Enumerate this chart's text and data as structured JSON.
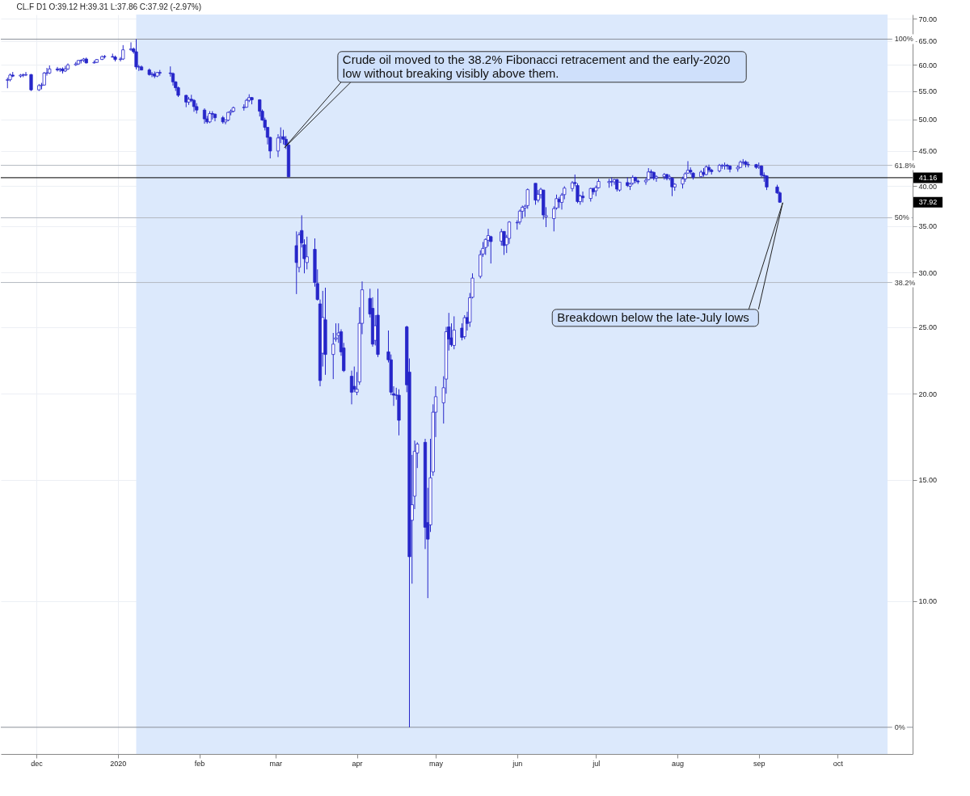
{
  "chart_data": {
    "type": "candlestick",
    "title": "CL.F  D1  O:39.12  H:39.31  L:37.86  C:37.92  (-2.97%)",
    "color": "#2626c9",
    "x": [
      "2019-11-20",
      "2019-11-21",
      "2019-11-22",
      "2019-11-25",
      "2019-11-26",
      "2019-11-27",
      "2019-11-29",
      "2019-12-02",
      "2019-12-03",
      "2019-12-04",
      "2019-12-05",
      "2019-12-06",
      "2019-12-09",
      "2019-12-10",
      "2019-12-11",
      "2019-12-12",
      "2019-12-13",
      "2019-12-16",
      "2019-12-17",
      "2019-12-18",
      "2019-12-19",
      "2019-12-20",
      "2019-12-23",
      "2019-12-24",
      "2019-12-26",
      "2019-12-27",
      "2019-12-30",
      "2019-12-31",
      "2020-01-02",
      "2020-01-03",
      "2020-01-06",
      "2020-01-07",
      "2020-01-08",
      "2020-01-09",
      "2020-01-10",
      "2020-01-13",
      "2020-01-14",
      "2020-01-15",
      "2020-01-16",
      "2020-01-17",
      "2020-01-21",
      "2020-01-22",
      "2020-01-23",
      "2020-01-24",
      "2020-01-27",
      "2020-01-28",
      "2020-01-29",
      "2020-01-30",
      "2020-01-31",
      "2020-02-03",
      "2020-02-04",
      "2020-02-05",
      "2020-02-06",
      "2020-02-07",
      "2020-02-10",
      "2020-02-11",
      "2020-02-12",
      "2020-02-13",
      "2020-02-14",
      "2020-02-18",
      "2020-02-19",
      "2020-02-20",
      "2020-02-21",
      "2020-02-24",
      "2020-02-25",
      "2020-02-26",
      "2020-02-27",
      "2020-02-28",
      "2020-03-02",
      "2020-03-03",
      "2020-03-04",
      "2020-03-05",
      "2020-03-06",
      "2020-03-09",
      "2020-03-10",
      "2020-03-11",
      "2020-03-12",
      "2020-03-13",
      "2020-03-16",
      "2020-03-17",
      "2020-03-18",
      "2020-03-19",
      "2020-03-20",
      "2020-03-23",
      "2020-03-24",
      "2020-03-25",
      "2020-03-26",
      "2020-03-27",
      "2020-03-30",
      "2020-03-31",
      "2020-04-01",
      "2020-04-02",
      "2020-04-03",
      "2020-04-06",
      "2020-04-07",
      "2020-04-08",
      "2020-04-09",
      "2020-04-13",
      "2020-04-14",
      "2020-04-15",
      "2020-04-16",
      "2020-04-17",
      "2020-04-20",
      "2020-04-21",
      "2020-04-22",
      "2020-04-23",
      "2020-04-24",
      "2020-04-27",
      "2020-04-28",
      "2020-04-29",
      "2020-04-30",
      "2020-05-01",
      "2020-05-04",
      "2020-05-05",
      "2020-05-06",
      "2020-05-07",
      "2020-05-08",
      "2020-05-11",
      "2020-05-12",
      "2020-05-13",
      "2020-05-14",
      "2020-05-15",
      "2020-05-18",
      "2020-05-19",
      "2020-05-20",
      "2020-05-21",
      "2020-05-22",
      "2020-05-26",
      "2020-05-27",
      "2020-05-28",
      "2020-05-29",
      "2020-06-01",
      "2020-06-02",
      "2020-06-03",
      "2020-06-04",
      "2020-06-05",
      "2020-06-08",
      "2020-06-09",
      "2020-06-10",
      "2020-06-11",
      "2020-06-12",
      "2020-06-15",
      "2020-06-16",
      "2020-06-17",
      "2020-06-18",
      "2020-06-19",
      "2020-06-22",
      "2020-06-23",
      "2020-06-24",
      "2020-06-25",
      "2020-06-26",
      "2020-06-29",
      "2020-06-30",
      "2020-07-01",
      "2020-07-02",
      "2020-07-06",
      "2020-07-07",
      "2020-07-08",
      "2020-07-09",
      "2020-07-10",
      "2020-07-13",
      "2020-07-14",
      "2020-07-15",
      "2020-07-16",
      "2020-07-17",
      "2020-07-20",
      "2020-07-21",
      "2020-07-22",
      "2020-07-23",
      "2020-07-24",
      "2020-07-27",
      "2020-07-28",
      "2020-07-29",
      "2020-07-30",
      "2020-07-31",
      "2020-08-03",
      "2020-08-04",
      "2020-08-05",
      "2020-08-06",
      "2020-08-07",
      "2020-08-10",
      "2020-08-11",
      "2020-08-12",
      "2020-08-13",
      "2020-08-14",
      "2020-08-17",
      "2020-08-18",
      "2020-08-19",
      "2020-08-20",
      "2020-08-21",
      "2020-08-24",
      "2020-08-25",
      "2020-08-26",
      "2020-08-27",
      "2020-08-28",
      "2020-08-31",
      "2020-09-01",
      "2020-09-02",
      "2020-09-03",
      "2020-09-04",
      "2020-09-08",
      "2020-09-09"
    ],
    "ohlc": [
      [
        57.0,
        57.5,
        55.5,
        57.1
      ],
      [
        57.1,
        58.3,
        56.8,
        58.0
      ],
      [
        58.0,
        58.6,
        57.6,
        57.8
      ],
      [
        57.8,
        58.2,
        57.5,
        58.0
      ],
      [
        58.0,
        58.3,
        57.6,
        58.0
      ],
      [
        58.0,
        58.6,
        57.8,
        58.1
      ],
      [
        58.1,
        58.2,
        55.0,
        55.2
      ],
      [
        55.2,
        56.3,
        55.0,
        56.0
      ],
      [
        56.0,
        56.5,
        55.3,
        56.1
      ],
      [
        56.1,
        58.6,
        56.0,
        58.4
      ],
      [
        58.4,
        59.4,
        57.9,
        58.4
      ],
      [
        58.4,
        59.9,
        58.2,
        59.2
      ],
      [
        59.2,
        59.6,
        58.7,
        59.0
      ],
      [
        59.0,
        59.4,
        58.6,
        59.2
      ],
      [
        59.2,
        59.5,
        58.3,
        58.8
      ],
      [
        58.8,
        59.8,
        58.6,
        59.2
      ],
      [
        59.2,
        60.3,
        59.0,
        60.0
      ],
      [
        60.0,
        60.6,
        59.8,
        60.2
      ],
      [
        60.2,
        61.0,
        60.0,
        60.9
      ],
      [
        60.9,
        61.1,
        60.3,
        60.9
      ],
      [
        60.9,
        61.4,
        60.6,
        61.2
      ],
      [
        61.2,
        61.5,
        60.3,
        60.4
      ],
      [
        60.4,
        60.9,
        60.3,
        60.5
      ],
      [
        60.5,
        61.2,
        60.4,
        61.1
      ],
      [
        61.1,
        61.9,
        61.0,
        61.7
      ],
      [
        61.7,
        62.0,
        61.3,
        61.7
      ],
      [
        61.7,
        62.3,
        61.5,
        61.6
      ],
      [
        61.6,
        61.9,
        60.7,
        61.1
      ],
      [
        61.1,
        61.6,
        60.7,
        61.2
      ],
      [
        61.2,
        64.1,
        61.0,
        63.1
      ],
      [
        63.1,
        64.7,
        62.9,
        63.3
      ],
      [
        63.3,
        63.6,
        62.3,
        62.7
      ],
      [
        62.7,
        65.4,
        59.1,
        59.6
      ],
      [
        59.6,
        60.0,
        58.8,
        59.6
      ],
      [
        59.6,
        59.9,
        58.9,
        59.0
      ],
      [
        59.0,
        59.3,
        57.9,
        58.1
      ],
      [
        58.1,
        58.6,
        57.6,
        58.2
      ],
      [
        58.2,
        58.7,
        57.4,
        57.8
      ],
      [
        57.8,
        58.6,
        57.6,
        58.5
      ],
      [
        58.5,
        59.0,
        57.9,
        58.4
      ],
      [
        58.4,
        59.7,
        57.7,
        58.3
      ],
      [
        58.3,
        58.5,
        56.0,
        56.7
      ],
      [
        56.7,
        56.8,
        55.0,
        55.6
      ],
      [
        55.6,
        55.8,
        53.9,
        54.2
      ],
      [
        54.2,
        54.3,
        52.1,
        53.0
      ],
      [
        53.0,
        53.9,
        52.5,
        53.5
      ],
      [
        53.5,
        54.3,
        53.0,
        53.3
      ],
      [
        53.3,
        53.5,
        51.3,
        52.2
      ],
      [
        52.2,
        52.8,
        51.0,
        51.6
      ],
      [
        51.6,
        51.9,
        49.3,
        50.1
      ],
      [
        50.1,
        50.6,
        49.3,
        49.6
      ],
      [
        49.6,
        51.4,
        49.4,
        51.0
      ],
      [
        51.0,
        51.4,
        50.0,
        50.9
      ],
      [
        50.9,
        51.0,
        49.7,
        50.3
      ],
      [
        50.3,
        50.6,
        49.3,
        49.6
      ],
      [
        49.6,
        50.0,
        49.2,
        49.9
      ],
      [
        49.9,
        51.3,
        49.7,
        51.2
      ],
      [
        51.2,
        51.7,
        50.7,
        51.4
      ],
      [
        51.4,
        52.2,
        51.2,
        52.0
      ],
      [
        52.0,
        52.6,
        51.5,
        52.1
      ],
      [
        52.1,
        53.6,
        52.0,
        53.3
      ],
      [
        53.3,
        54.4,
        53.0,
        53.8
      ],
      [
        53.8,
        53.9,
        52.6,
        53.4
      ],
      [
        53.4,
        53.5,
        50.5,
        51.4
      ],
      [
        51.4,
        51.7,
        49.8,
        49.9
      ],
      [
        49.9,
        50.3,
        48.2,
        48.7
      ],
      [
        48.7,
        48.7,
        46.0,
        47.1
      ],
      [
        47.1,
        47.2,
        43.9,
        45.0
      ],
      [
        45.0,
        47.6,
        44.1,
        47.0
      ],
      [
        47.0,
        48.7,
        46.2,
        47.2
      ],
      [
        47.2,
        48.3,
        46.0,
        46.8
      ],
      [
        46.8,
        47.3,
        45.3,
        45.9
      ],
      [
        45.9,
        46.4,
        41.2,
        41.3
      ],
      [
        32.8,
        34.4,
        27.9,
        31.0
      ],
      [
        30.5,
        34.3,
        30.0,
        34.0
      ],
      [
        34.5,
        36.3,
        32.6,
        33.1
      ],
      [
        32.9,
        33.5,
        29.9,
        31.4
      ],
      [
        31.0,
        33.8,
        30.3,
        31.6
      ],
      [
        32.4,
        33.6,
        28.6,
        29.0
      ],
      [
        28.9,
        30.3,
        27.3,
        27.4
      ],
      [
        27.0,
        27.4,
        20.5,
        20.9
      ],
      [
        22.9,
        28.2,
        21.9,
        25.8
      ],
      [
        25.6,
        28.5,
        21.3,
        22.8
      ],
      [
        22.8,
        24.5,
        21.0,
        23.6
      ],
      [
        24.0,
        25.3,
        23.8,
        24.1
      ],
      [
        24.3,
        25.3,
        23.7,
        24.5
      ],
      [
        24.6,
        24.8,
        22.7,
        23.0
      ],
      [
        23.3,
        23.7,
        21.5,
        21.6
      ],
      [
        21.2,
        21.6,
        19.3,
        20.1
      ],
      [
        20.5,
        21.9,
        20.1,
        20.3
      ],
      [
        20.1,
        21.5,
        19.9,
        20.3
      ],
      [
        20.8,
        26.7,
        20.6,
        25.3
      ],
      [
        25.3,
        29.1,
        24.4,
        28.3
      ],
      [
        27.5,
        28.4,
        25.8,
        26.1
      ],
      [
        26.6,
        27.6,
        23.4,
        23.6
      ],
      [
        23.9,
        26.0,
        23.5,
        25.1
      ],
      [
        26.0,
        28.4,
        22.6,
        22.8
      ],
      [
        23.0,
        24.7,
        22.2,
        22.4
      ],
      [
        22.4,
        22.8,
        19.9,
        20.1
      ],
      [
        20.0,
        20.5,
        19.2,
        19.9
      ],
      [
        19.9,
        20.4,
        19.6,
        19.9
      ],
      [
        19.9,
        20.3,
        17.4,
        18.3
      ],
      [
        25.0,
        25.1,
        20.1,
        20.6
      ],
      [
        21.5,
        22.5,
        6.56,
        11.6
      ],
      [
        13.1,
        16.3,
        10.6,
        13.8
      ],
      [
        14.2,
        17.1,
        13.6,
        16.5
      ],
      [
        16.4,
        17.0,
        15.6,
        16.9
      ],
      [
        17.0,
        17.2,
        11.9,
        12.8
      ],
      [
        13.0,
        14.6,
        10.1,
        12.3
      ],
      [
        12.9,
        17.2,
        12.6,
        15.1
      ],
      [
        15.4,
        19.3,
        15.2,
        18.8
      ],
      [
        18.8,
        20.5,
        17.3,
        19.8
      ],
      [
        19.4,
        21.2,
        18.1,
        20.4
      ],
      [
        21.0,
        25.0,
        20.0,
        24.6
      ],
      [
        25.0,
        26.2,
        23.1,
        24.0
      ],
      [
        24.1,
        25.3,
        23.4,
        23.55
      ],
      [
        23.5,
        25.9,
        23.2,
        24.74
      ],
      [
        24.9,
        25.3,
        23.9,
        24.14
      ],
      [
        24.2,
        26.0,
        24.0,
        25.78
      ],
      [
        25.8,
        26.3,
        24.7,
        25.29
      ],
      [
        25.4,
        28.0,
        25.0,
        27.56
      ],
      [
        27.6,
        29.9,
        27.5,
        29.43
      ],
      [
        29.6,
        32.3,
        29.4,
        31.82
      ],
      [
        31.9,
        33.2,
        31.6,
        32.5
      ],
      [
        32.6,
        33.6,
        31.8,
        33.49
      ],
      [
        33.4,
        34.7,
        32.7,
        33.92
      ],
      [
        33.8,
        33.9,
        30.9,
        33.25
      ],
      [
        33.3,
        34.7,
        32.8,
        34.35
      ],
      [
        34.4,
        34.4,
        31.8,
        32.81
      ],
      [
        32.9,
        34.0,
        32.0,
        33.71
      ],
      [
        33.6,
        35.6,
        33.0,
        35.49
      ],
      [
        35.4,
        35.7,
        34.6,
        35.44
      ],
      [
        35.5,
        37.0,
        35.2,
        36.81
      ],
      [
        36.8,
        37.5,
        35.9,
        37.29
      ],
      [
        37.2,
        37.6,
        36.1,
        37.41
      ],
      [
        37.5,
        39.7,
        37.1,
        39.55
      ],
      [
        40.4,
        40.4,
        37.6,
        38.19
      ],
      [
        38.2,
        39.5,
        37.9,
        38.94
      ],
      [
        38.9,
        39.8,
        38.4,
        39.6
      ],
      [
        39.5,
        39.5,
        35.8,
        36.34
      ],
      [
        36.1,
        37.3,
        34.9,
        36.26
      ],
      [
        35.9,
        37.4,
        34.4,
        37.12
      ],
      [
        37.2,
        38.9,
        37.0,
        38.38
      ],
      [
        38.3,
        38.6,
        37.2,
        37.96
      ],
      [
        37.9,
        39.1,
        37.0,
        38.84
      ],
      [
        38.9,
        40.0,
        38.3,
        39.75
      ],
      [
        39.7,
        40.7,
        39.3,
        40.46
      ],
      [
        40.5,
        41.6,
        40.0,
        40.37
      ],
      [
        40.1,
        40.4,
        37.8,
        38.01
      ],
      [
        38.0,
        38.9,
        37.6,
        38.72
      ],
      [
        38.7,
        39.3,
        37.9,
        38.49
      ],
      [
        38.4,
        39.8,
        38.0,
        39.7
      ],
      [
        39.7,
        39.8,
        38.9,
        39.27
      ],
      [
        39.4,
        40.1,
        38.7,
        39.82
      ],
      [
        39.8,
        41.0,
        39.7,
        40.65
      ],
      [
        40.5,
        41.0,
        39.8,
        40.63
      ],
      [
        40.6,
        41.2,
        40.0,
        40.62
      ],
      [
        40.6,
        41.0,
        40.2,
        40.9
      ],
      [
        40.9,
        41.0,
        39.3,
        39.62
      ],
      [
        39.5,
        40.6,
        39.3,
        40.55
      ],
      [
        40.5,
        41.2,
        39.9,
        40.1
      ],
      [
        40.0,
        40.5,
        39.5,
        40.29
      ],
      [
        40.4,
        41.5,
        40.2,
        41.2
      ],
      [
        41.2,
        41.3,
        40.4,
        40.75
      ],
      [
        40.7,
        40.9,
        40.3,
        40.59
      ],
      [
        40.6,
        41.1,
        40.2,
        40.81
      ],
      [
        40.9,
        42.5,
        40.8,
        41.96
      ],
      [
        42.0,
        42.3,
        41.0,
        41.9
      ],
      [
        41.9,
        42.0,
        40.8,
        41.07
      ],
      [
        41.1,
        41.5,
        40.6,
        41.29
      ],
      [
        41.3,
        41.8,
        40.9,
        41.6
      ],
      [
        41.6,
        41.7,
        40.8,
        41.04
      ],
      [
        41.1,
        41.6,
        40.8,
        41.27
      ],
      [
        41.1,
        41.2,
        38.7,
        39.92
      ],
      [
        39.9,
        40.4,
        39.4,
        40.27
      ],
      [
        40.3,
        41.3,
        39.7,
        41.01
      ],
      [
        41.0,
        41.9,
        40.6,
        41.7
      ],
      [
        41.8,
        43.5,
        41.7,
        42.19
      ],
      [
        42.2,
        42.6,
        41.6,
        41.95
      ],
      [
        41.8,
        41.9,
        40.9,
        41.22
      ],
      [
        41.3,
        42.2,
        41.2,
        41.94
      ],
      [
        41.9,
        42.5,
        41.3,
        41.61
      ],
      [
        41.6,
        42.9,
        41.5,
        42.67
      ],
      [
        42.6,
        43.0,
        41.9,
        42.24
      ],
      [
        42.2,
        42.4,
        41.6,
        42.01
      ],
      [
        42.1,
        43.1,
        41.9,
        42.89
      ],
      [
        42.8,
        43.1,
        42.4,
        42.89
      ],
      [
        42.8,
        43.3,
        42.3,
        42.93
      ],
      [
        42.9,
        43.1,
        42.3,
        42.82
      ],
      [
        42.8,
        42.9,
        41.9,
        42.34
      ],
      [
        42.4,
        42.9,
        42.0,
        42.62
      ],
      [
        42.6,
        43.6,
        42.5,
        43.35
      ],
      [
        43.3,
        43.8,
        43.0,
        43.39
      ],
      [
        43.4,
        43.6,
        42.6,
        43.04
      ],
      [
        43.0,
        43.4,
        42.6,
        42.97
      ],
      [
        43.0,
        43.1,
        42.4,
        42.61
      ],
      [
        42.6,
        43.3,
        42.4,
        42.76
      ],
      [
        42.8,
        42.9,
        41.2,
        41.51
      ],
      [
        41.5,
        41.9,
        40.6,
        41.37
      ],
      [
        41.4,
        41.5,
        39.5,
        39.9
      ],
      [
        39.9,
        40.2,
        39.0,
        39.12
      ],
      [
        39.12,
        39.31,
        37.86,
        37.92
      ]
    ],
    "log": true,
    "xlim": [
      "2019-11-19",
      "2020-10-28"
    ],
    "ylim": [
      6,
      71
    ],
    "xticks": [
      {
        "value": "2019-12-01",
        "label": "dec"
      },
      {
        "value": "2020-01-01",
        "label": "2020"
      },
      {
        "value": "2020-02-01",
        "label": "feb"
      },
      {
        "value": "2020-03-01",
        "label": "mar"
      },
      {
        "value": "2020-04-01",
        "label": "apr"
      },
      {
        "value": "2020-05-01",
        "label": "may"
      },
      {
        "value": "2020-06-01",
        "label": "jun"
      },
      {
        "value": "2020-07-01",
        "label": "jul"
      },
      {
        "value": "2020-08-01",
        "label": "aug"
      },
      {
        "value": "2020-09-01",
        "label": "sep"
      },
      {
        "value": "2020-10-01",
        "label": "oct"
      }
    ],
    "yticks": [
      {
        "value": 10,
        "label": "10.00"
      },
      {
        "value": 15,
        "label": "15.00"
      },
      {
        "value": 20,
        "label": "20.00"
      },
      {
        "value": 25,
        "label": "25.00"
      },
      {
        "value": 30,
        "label": "30.00"
      },
      {
        "value": 35,
        "label": "35.00"
      },
      {
        "value": 40,
        "label": "40.00"
      },
      {
        "value": 45,
        "label": "45.00"
      },
      {
        "value": 50,
        "label": "50.00"
      },
      {
        "value": 55,
        "label": "55.00"
      },
      {
        "value": 60,
        "label": "60.00"
      },
      {
        "value": 65,
        "label": "65.00"
      },
      {
        "value": 70,
        "label": "70.00"
      }
    ],
    "grid": true,
    "bands": [
      {
        "axis": "x",
        "from": "2020-01-08",
        "to": "2020-10-20",
        "color": "#dce9fc"
      }
    ],
    "ref_lines": [
      {
        "axis": "y",
        "value": 65.4,
        "color": "#8a8f99"
      },
      {
        "axis": "y",
        "value": 42.9,
        "color": "#b4b9c2"
      },
      {
        "axis": "y",
        "value": 36.0,
        "color": "#b4b9c2"
      },
      {
        "axis": "y",
        "value": 29.0,
        "color": "#b4b9c2"
      },
      {
        "axis": "y",
        "value": 6.56,
        "color": "#8a8f99"
      },
      {
        "axis": "y",
        "value": 41.16,
        "label": "41.16",
        "color": "#000000"
      }
    ],
    "annotations": [
      {
        "text": "Crude oil moved to the 38.2% Fibonacci retracement and the early-2020\nlow without breaking visibly above them.",
        "x": "2020-03-05",
        "y": 45.5
      },
      {
        "text": "Breakdown below the late-July lows",
        "x": "2020-09-09",
        "y": 37.86
      },
      "37.92",
      {
        "text": "100%",
        "x": "2020-10-20",
        "y": 65.4
      },
      {
        "text": "61.8%",
        "x": "2020-10-20",
        "y": 42.9
      },
      {
        "text": "50%",
        "x": "2020-10-20",
        "y": 36.0
      },
      {
        "text": "38.2%",
        "x": "2020-10-20",
        "y": 29.0
      },
      {
        "text": "0%",
        "x": "2020-10-20",
        "y": 6.56
      }
    ]
  }
}
